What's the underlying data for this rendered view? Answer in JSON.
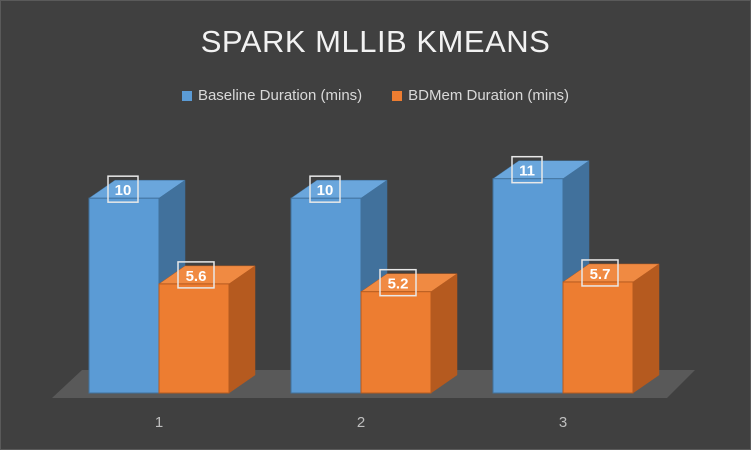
{
  "chart_data": {
    "type": "bar",
    "title": "SPARK MLLIB KMEANS",
    "categories": [
      "1",
      "2",
      "3"
    ],
    "series": [
      {
        "name": "Baseline Duration (mins)",
        "values": [
          10,
          10,
          11
        ]
      },
      {
        "name": "BDMem Duration (mins)",
        "values": [
          5.6,
          5.2,
          5.7
        ]
      }
    ],
    "ylim": [
      0,
      11.6
    ],
    "grid": false,
    "legend_position": "top",
    "style": "3d-clustered-column",
    "colors": {
      "background": "#404040",
      "floor": "#595959",
      "baseline_front": "#5b9bd5",
      "baseline_side": "#41719c",
      "baseline_top": "#6aa6dc",
      "bdmem_front": "#ed7d31",
      "bdmem_side": "#b55a1f",
      "bdmem_top": "#f08a42",
      "label_box": "#e8e8e8"
    }
  }
}
